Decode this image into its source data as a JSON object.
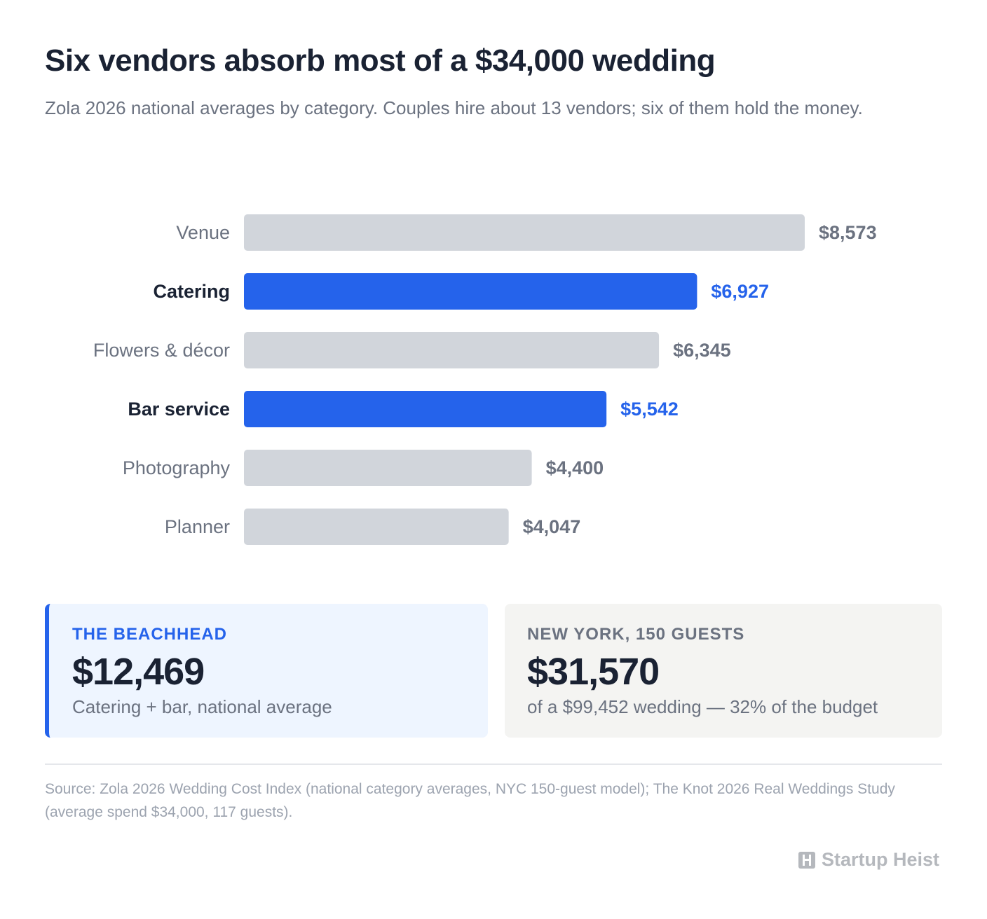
{
  "header": {
    "title": "Six vendors absorb most of a $34,000 wedding",
    "subtitle": "Zola 2026 national averages by category. Couples hire about 13 vendors; six of them hold the money."
  },
  "chart_data": {
    "type": "bar",
    "orientation": "horizontal",
    "categories": [
      "Venue",
      "Catering",
      "Flowers & décor",
      "Bar service",
      "Photography",
      "Planner"
    ],
    "values": [
      8573,
      6927,
      6345,
      5542,
      4400,
      4047
    ],
    "value_labels": [
      "$8,573",
      "$6,927",
      "$6,345",
      "$5,542",
      "$4,400",
      "$4,047"
    ],
    "highlighted": [
      false,
      true,
      false,
      true,
      false,
      false
    ],
    "xlim": [
      0,
      8573
    ],
    "grid": false,
    "colors": {
      "bar": "#d1d5db",
      "highlight": "#2563eb",
      "label": "#6b7280",
      "highlight_label": "#1a2233",
      "value": "#6b7280",
      "highlight_value": "#2563eb"
    }
  },
  "cards": {
    "beachhead": {
      "kicker": "THE BEACHHEAD",
      "value": "$12,469",
      "note": "Catering + bar, national average"
    },
    "new_york": {
      "kicker": "NEW YORK, 150 GUESTS",
      "value": "$31,570",
      "note": "of a $99,452 wedding — 32% of the budget"
    }
  },
  "footer": {
    "source": "Source: Zola 2026 Wedding Cost Index (national category averages, NYC 150-guest model); The Knot 2026 Real Weddings Study (average spend $34,000, 117 guests).",
    "brand": "Startup Heist",
    "brand_icon": "building-h-icon"
  }
}
